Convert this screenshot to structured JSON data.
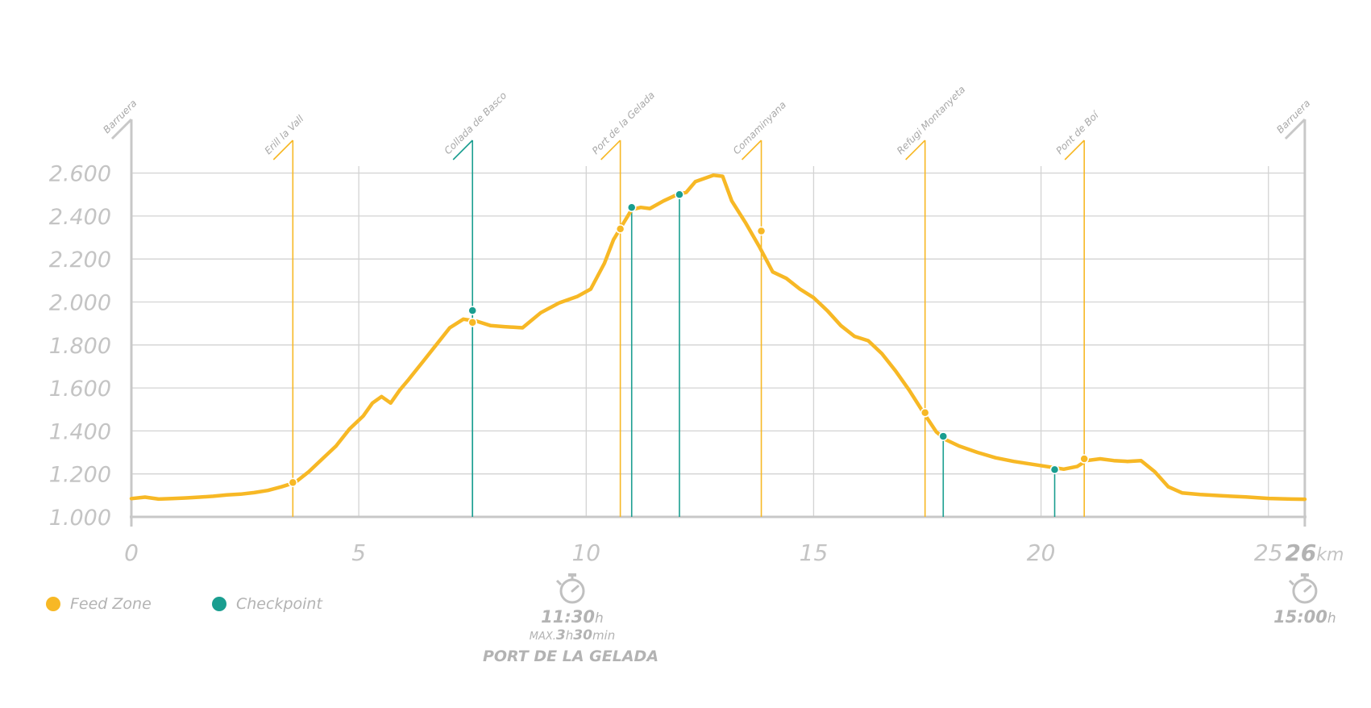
{
  "chart_data": {
    "type": "line",
    "title": "",
    "xlabel": "",
    "ylabel": "",
    "xlim": [
      0,
      25.8
    ],
    "ylim": [
      1000,
      2600
    ],
    "y_ticks": [
      {
        "v": 1000,
        "label": "1.000"
      },
      {
        "v": 1200,
        "label": "1.200"
      },
      {
        "v": 1400,
        "label": "1.400"
      },
      {
        "v": 1600,
        "label": "1.600"
      },
      {
        "v": 1800,
        "label": "1.800"
      },
      {
        "v": 2000,
        "label": "2.000"
      },
      {
        "v": 2200,
        "label": "2.200"
      },
      {
        "v": 2400,
        "label": "2.400"
      },
      {
        "v": 2600,
        "label": "2.600"
      }
    ],
    "x_ticks": [
      {
        "v": 0,
        "label": "0"
      },
      {
        "v": 5,
        "label": "5"
      },
      {
        "v": 10,
        "label": "10"
      },
      {
        "v": 15,
        "label": "15"
      },
      {
        "v": 20,
        "label": "20"
      },
      {
        "v": 25,
        "label": "25"
      }
    ],
    "x_end": {
      "v": 25.8,
      "label": "26",
      "unit": "km"
    },
    "grid": true,
    "colors": {
      "profile": "#f7b825",
      "feed": "#f7b825",
      "checkpoint": "#1a9e90",
      "axis": "#c8c8c8"
    },
    "profile": {
      "x": [
        0,
        0.3,
        0.6,
        0.9,
        1.2,
        1.5,
        1.8,
        2.1,
        2.4,
        2.7,
        3.0,
        3.3,
        3.6,
        3.9,
        4.2,
        4.5,
        4.8,
        5.1,
        5.3,
        5.5,
        5.7,
        5.9,
        6.1,
        6.4,
        6.7,
        7.0,
        7.3,
        7.6,
        7.9,
        8.2,
        8.6,
        9.0,
        9.4,
        9.8,
        10.1,
        10.4,
        10.6,
        10.8,
        11.0,
        11.2,
        11.4,
        11.7,
        12.0,
        12.2,
        12.4,
        12.6,
        12.8,
        13.0,
        13.2,
        13.5,
        13.8,
        14.1,
        14.4,
        14.7,
        15.0,
        15.3,
        15.6,
        15.9,
        16.2,
        16.5,
        16.8,
        17.1,
        17.4,
        17.7,
        17.9,
        18.2,
        18.6,
        19.0,
        19.4,
        19.8,
        20.2,
        20.5,
        20.8,
        21.0,
        21.3,
        21.6,
        21.9,
        22.2,
        22.5,
        22.8,
        23.1,
        23.5,
        24.0,
        24.5,
        25.0,
        25.5,
        25.8
      ],
      "y": [
        1085,
        1092,
        1083,
        1085,
        1088,
        1092,
        1096,
        1102,
        1106,
        1113,
        1123,
        1140,
        1160,
        1210,
        1270,
        1330,
        1410,
        1470,
        1530,
        1560,
        1530,
        1590,
        1640,
        1720,
        1800,
        1880,
        1920,
        1910,
        1890,
        1885,
        1880,
        1950,
        1995,
        2025,
        2060,
        2180,
        2290,
        2360,
        2430,
        2440,
        2435,
        2470,
        2500,
        2510,
        2560,
        2575,
        2590,
        2585,
        2470,
        2370,
        2260,
        2140,
        2110,
        2060,
        2020,
        1960,
        1890,
        1840,
        1820,
        1760,
        1680,
        1590,
        1490,
        1395,
        1360,
        1330,
        1300,
        1275,
        1258,
        1245,
        1232,
        1222,
        1235,
        1262,
        1270,
        1262,
        1258,
        1262,
        1210,
        1140,
        1112,
        1104,
        1098,
        1093,
        1086,
        1083,
        1082
      ]
    },
    "waypoints": [
      {
        "name": "Barruera",
        "x": 0,
        "kind": "start"
      },
      {
        "name": "Erill la Vall",
        "x": 3.55,
        "kind": "feed"
      },
      {
        "name": "Collada de Basco",
        "x": 7.5,
        "kind": "checkpoint"
      },
      {
        "name": "Port de la Gelada",
        "x": 10.75,
        "kind": "feed"
      },
      {
        "name": "Comaminyana",
        "x": 13.85,
        "kind": "feed"
      },
      {
        "name": "Refugi Montanyeta",
        "x": 17.45,
        "kind": "feed"
      },
      {
        "name": "Pont de Boí",
        "x": 20.95,
        "kind": "feed"
      },
      {
        "name": "Barruera",
        "x": 25.8,
        "kind": "finish"
      }
    ],
    "feed_markers": [
      {
        "x": 3.55,
        "y": 1160
      },
      {
        "x": 7.5,
        "y": 1905
      },
      {
        "x": 10.75,
        "y": 2340
      },
      {
        "x": 13.85,
        "y": 2330
      },
      {
        "x": 17.45,
        "y": 1485
      },
      {
        "x": 20.95,
        "y": 1270
      }
    ],
    "checkpoint_markers": [
      {
        "x": 7.5,
        "y": 1960
      },
      {
        "x": 11.0,
        "y": 2440
      },
      {
        "x": 12.05,
        "y": 2500
      },
      {
        "x": 17.85,
        "y": 1375
      },
      {
        "x": 20.3,
        "y": 1220
      }
    ],
    "legend": {
      "placement": "bottom-left",
      "feed": "Feed Zone",
      "checkpoint": "Checkpoint"
    },
    "cutoffs": [
      {
        "x": 9.5,
        "time": "11:30",
        "unit": "h",
        "max_prefix": "MAX.",
        "max_h": "3",
        "max_h_unit": "h",
        "max_min": "30",
        "max_min_unit": "min",
        "place": "PORT DE LA GELADA"
      },
      {
        "x": 25.8,
        "time": "15:00",
        "unit": "h"
      }
    ]
  }
}
